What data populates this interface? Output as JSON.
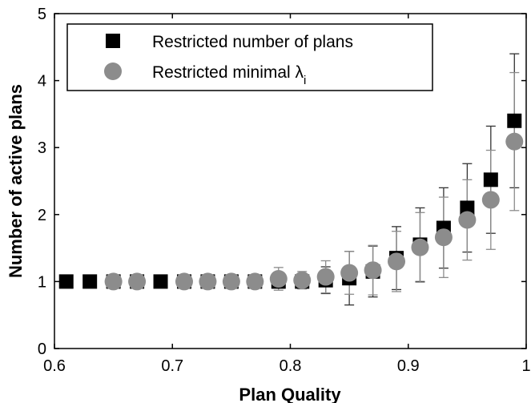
{
  "chart_data": {
    "type": "scatter",
    "xlabel": "Plan Quality",
    "ylabel": "Number of active plans",
    "xlim": [
      0.6,
      1.0
    ],
    "ylim": [
      0,
      5
    ],
    "xticks": [
      "0.6",
      "0.7",
      "0.8",
      "0.9",
      "1"
    ],
    "yticks": [
      "0",
      "1",
      "2",
      "3",
      "4",
      "5"
    ],
    "grid": false,
    "legend_position": "top-left",
    "series": [
      {
        "name": "Restricted number of plans",
        "marker": "square",
        "color": "#000000",
        "error_bar_color": "#333333",
        "points": [
          {
            "x": 0.61,
            "y": 1.0,
            "err": 0.0
          },
          {
            "x": 0.63,
            "y": 1.0,
            "err": 0.0
          },
          {
            "x": 0.65,
            "y": 1.0,
            "err": 0.0
          },
          {
            "x": 0.67,
            "y": 1.0,
            "err": 0.0
          },
          {
            "x": 0.69,
            "y": 1.0,
            "err": 0.0
          },
          {
            "x": 0.71,
            "y": 1.0,
            "err": 0.0
          },
          {
            "x": 0.73,
            "y": 1.0,
            "err": 0.0
          },
          {
            "x": 0.75,
            "y": 1.0,
            "err": 0.0
          },
          {
            "x": 0.77,
            "y": 1.0,
            "err": 0.0
          },
          {
            "x": 0.79,
            "y": 1.0,
            "err": 0.05
          },
          {
            "x": 0.81,
            "y": 1.0,
            "err": 0.08
          },
          {
            "x": 0.83,
            "y": 1.02,
            "err": 0.2
          },
          {
            "x": 0.85,
            "y": 1.05,
            "err": 0.4
          },
          {
            "x": 0.87,
            "y": 1.15,
            "err": 0.38
          },
          {
            "x": 0.89,
            "y": 1.35,
            "err": 0.47
          },
          {
            "x": 0.91,
            "y": 1.55,
            "err": 0.55
          },
          {
            "x": 0.93,
            "y": 1.8,
            "err": 0.6
          },
          {
            "x": 0.95,
            "y": 2.1,
            "err": 0.66
          },
          {
            "x": 0.97,
            "y": 2.52,
            "err": 0.8
          },
          {
            "x": 0.99,
            "y": 3.4,
            "err": 1.0
          }
        ]
      },
      {
        "name": "Restricted minimal λi",
        "marker": "circle",
        "color": "#8c8c8c",
        "error_bar_color": "#8c8c8c",
        "points": [
          {
            "x": 0.65,
            "y": 1.0,
            "err": 0.0
          },
          {
            "x": 0.67,
            "y": 1.0,
            "err": 0.0
          },
          {
            "x": 0.71,
            "y": 1.0,
            "err": 0.0
          },
          {
            "x": 0.73,
            "y": 1.0,
            "err": 0.0
          },
          {
            "x": 0.75,
            "y": 1.0,
            "err": 0.0
          },
          {
            "x": 0.77,
            "y": 1.0,
            "err": 0.0
          },
          {
            "x": 0.79,
            "y": 1.04,
            "err": 0.17
          },
          {
            "x": 0.81,
            "y": 1.02,
            "err": 0.13
          },
          {
            "x": 0.83,
            "y": 1.07,
            "err": 0.24
          },
          {
            "x": 0.85,
            "y": 1.13,
            "err": 0.32
          },
          {
            "x": 0.87,
            "y": 1.17,
            "err": 0.37
          },
          {
            "x": 0.89,
            "y": 1.3,
            "err": 0.45
          },
          {
            "x": 0.91,
            "y": 1.51,
            "err": 0.52
          },
          {
            "x": 0.93,
            "y": 1.66,
            "err": 0.6
          },
          {
            "x": 0.95,
            "y": 1.92,
            "err": 0.6
          },
          {
            "x": 0.97,
            "y": 2.22,
            "err": 0.74
          },
          {
            "x": 0.99,
            "y": 3.09,
            "err": 1.03
          }
        ]
      }
    ],
    "legend": {
      "entries": [
        {
          "text": "Restricted number of plans"
        },
        {
          "text_main": "Restricted minimal λ",
          "text_sub": "i"
        }
      ]
    }
  }
}
